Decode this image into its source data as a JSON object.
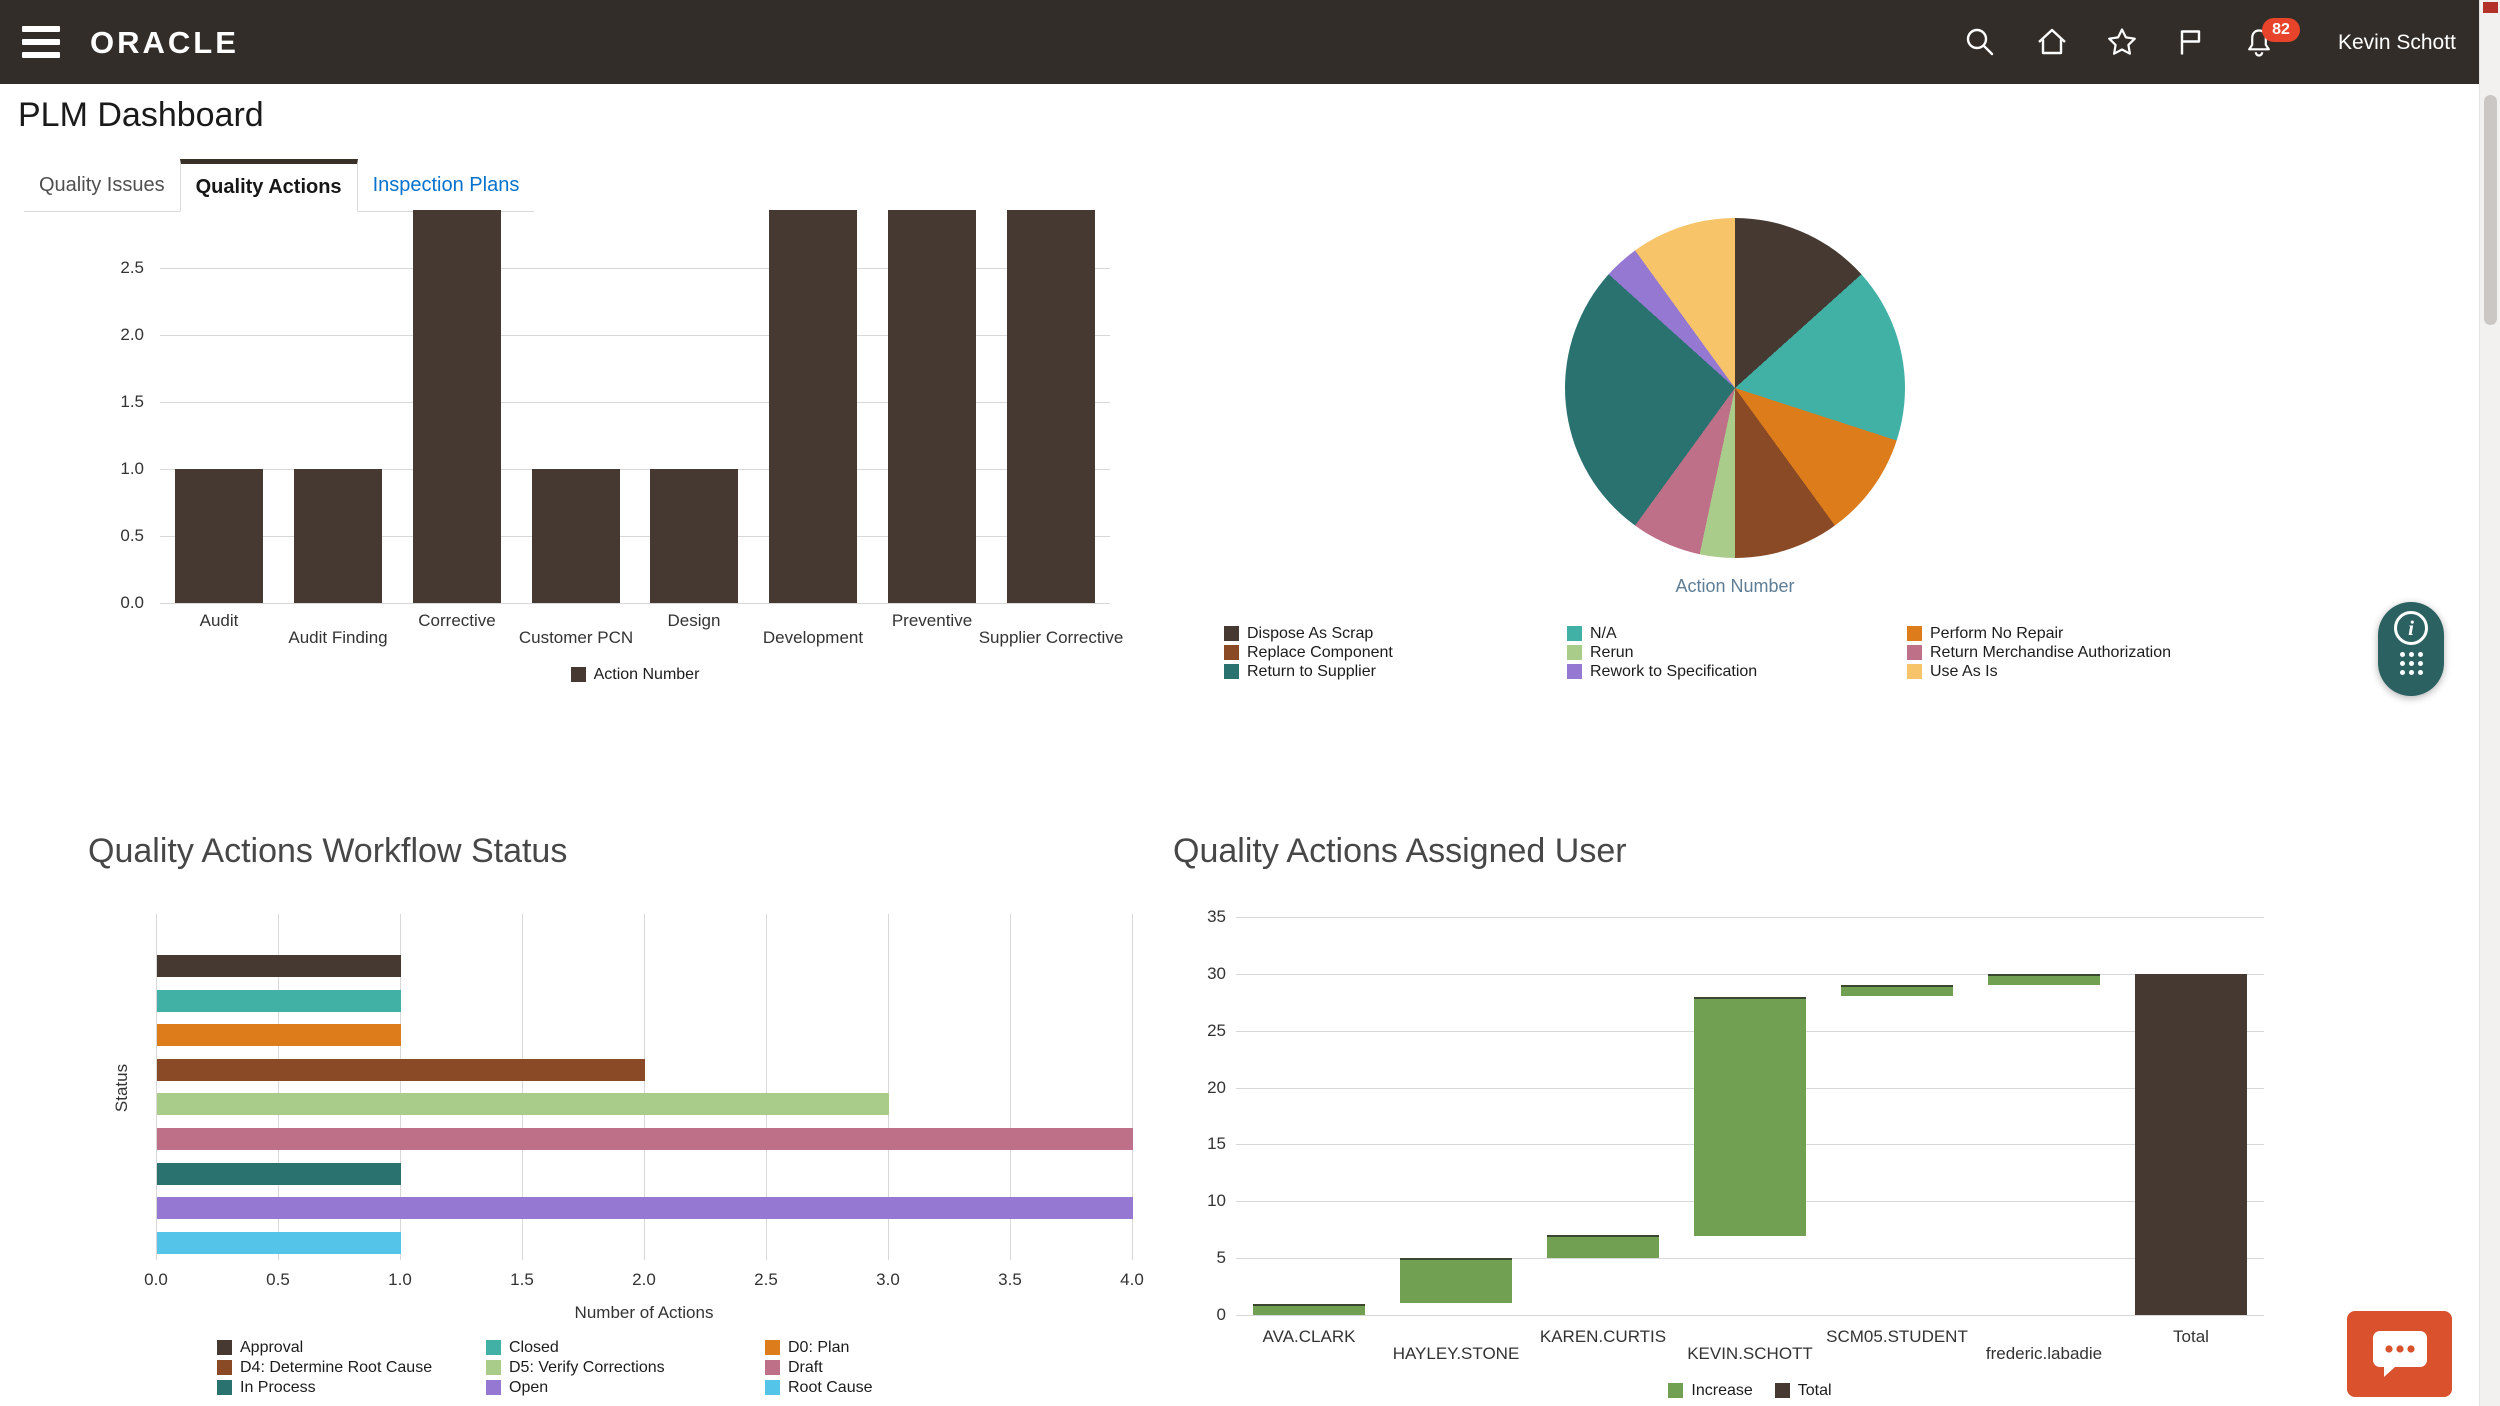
{
  "header": {
    "brand": "ORACLE",
    "notification_count": "82",
    "user_name": "Kevin Schott"
  },
  "icons": {
    "menu": "hamburger",
    "search": "magnifier",
    "home": "house",
    "favorites": "star-outline",
    "watchlist": "flag-outline",
    "notifications": "bell",
    "guided_learning": "info-circle-with-dot-grid",
    "feedback": "chat-bubble"
  },
  "page_title": "PLM Dashboard",
  "tabs": [
    {
      "label": "Quality Issues",
      "active": false
    },
    {
      "label": "Quality Actions",
      "active": true
    },
    {
      "label": "Inspection Plans",
      "active": false
    }
  ],
  "chart_data": [
    {
      "id": "quality-actions-by-type",
      "type": "bar",
      "categories": [
        "Audit",
        "Audit Finding",
        "Corrective",
        "Customer PCN",
        "Design",
        "Development",
        "Preventive",
        "Supplier Corrective"
      ],
      "values": [
        1,
        1,
        3,
        1,
        1,
        3,
        3,
        3
      ],
      "series_label": "Action Number",
      "bar_color": "#463931",
      "yticks": [
        "0.0",
        "0.5",
        "1.0",
        "1.5",
        "2.0",
        "2.5"
      ],
      "ylim": [
        0,
        2.93
      ],
      "grid": true,
      "legend_position": "bottom"
    },
    {
      "id": "action-number-breakdown",
      "type": "pie",
      "title": "Action Number",
      "slices": [
        {
          "label": "Dispose As Scrap",
          "value": 4,
          "color": "#463931"
        },
        {
          "label": "N/A",
          "value": 5,
          "color": "#41b0a5"
        },
        {
          "label": "Perform No Repair",
          "value": 3,
          "color": "#dd7c1b"
        },
        {
          "label": "Replace Component",
          "value": 3,
          "color": "#8a4a25"
        },
        {
          "label": "Rerun",
          "value": 1,
          "color": "#a9cc8b"
        },
        {
          "label": "Return Merchandise Authorization",
          "value": 2,
          "color": "#bf7089"
        },
        {
          "label": "Return to Supplier",
          "value": 8,
          "color": "#2a7270"
        },
        {
          "label": "Rework to Specification",
          "value": 1,
          "color": "#9478d2"
        },
        {
          "label": "Use As Is",
          "value": 3,
          "color": "#f8c469"
        }
      ],
      "legend_position": "bottom-grid-3col"
    },
    {
      "id": "workflow-status",
      "type": "bar-horizontal",
      "title": "Quality Actions Workflow Status",
      "xlabel": "Number of Actions",
      "ylabel": "Status",
      "categories": [
        "Approval",
        "Closed",
        "D0: Plan",
        "D4: Determine Root Cause",
        "D5: Verify Corrections",
        "Draft",
        "In Process",
        "Open",
        "Root Cause"
      ],
      "values": [
        1,
        1,
        1,
        2,
        3,
        4,
        1,
        4,
        1
      ],
      "colors": [
        "#463931",
        "#41b0a5",
        "#dd7c1b",
        "#8a4a25",
        "#a9cc8b",
        "#bf7089",
        "#2a7270",
        "#9478d2",
        "#54c5e8"
      ],
      "xticks": [
        "0.0",
        "0.5",
        "1.0",
        "1.5",
        "2.0",
        "2.5",
        "3.0",
        "3.5",
        "4.0"
      ],
      "xlim": [
        0,
        4
      ],
      "grid": true,
      "legend_position": "bottom-grid-3col"
    },
    {
      "id": "assigned-user",
      "type": "waterfall",
      "title": "Quality Actions Assigned User",
      "categories": [
        "AVA.CLARK",
        "HAYLEY.STONE",
        "KAREN.CURTIS",
        "KEVIN.SCHOTT",
        "SCM05.STUDENT",
        "frederic.labadie",
        "Total"
      ],
      "increments": [
        1,
        4,
        2,
        21,
        1,
        1
      ],
      "total": 30,
      "increase_color": "#72a053",
      "total_color": "#463931",
      "yticks": [
        0,
        5,
        10,
        15,
        20,
        25,
        30,
        35
      ],
      "ylim": [
        0,
        35
      ],
      "grid": true,
      "legend": [
        {
          "label": "Increase",
          "color": "#72a053"
        },
        {
          "label": "Total",
          "color": "#463931"
        }
      ]
    }
  ]
}
